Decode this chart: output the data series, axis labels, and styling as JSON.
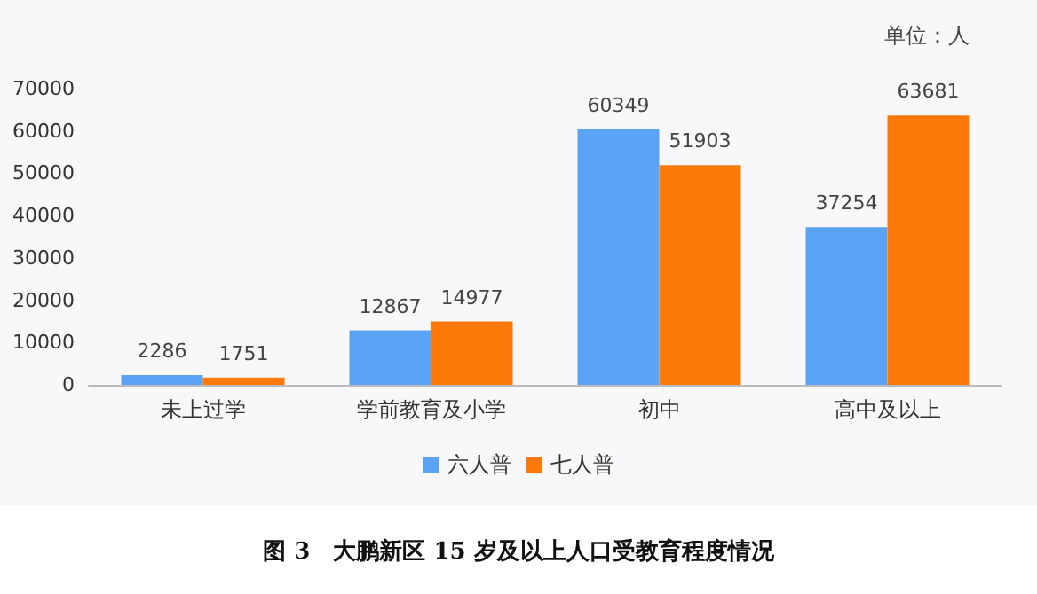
{
  "chart_data": {
    "type": "bar",
    "title": "图 3　大鹏新区 15 岁及以上人口受教育程度情况",
    "annotations": [
      "单位：人"
    ],
    "categories": [
      "未上过学",
      "学前教育及小学",
      "初中",
      "高中及以上"
    ],
    "series": [
      {
        "name": "六人普",
        "color": "#5ba3f5",
        "values": [
          2286,
          12867,
          60349,
          37254
        ]
      },
      {
        "name": "七人普",
        "color": "#fd7a0a",
        "values": [
          1751,
          14977,
          51903,
          63681
        ]
      }
    ],
    "ylim": [
      0,
      70000
    ],
    "yticks": [
      0,
      10000,
      20000,
      30000,
      40000,
      50000,
      60000,
      70000
    ],
    "grid": false,
    "legend": "bottom",
    "data_labels": true
  }
}
